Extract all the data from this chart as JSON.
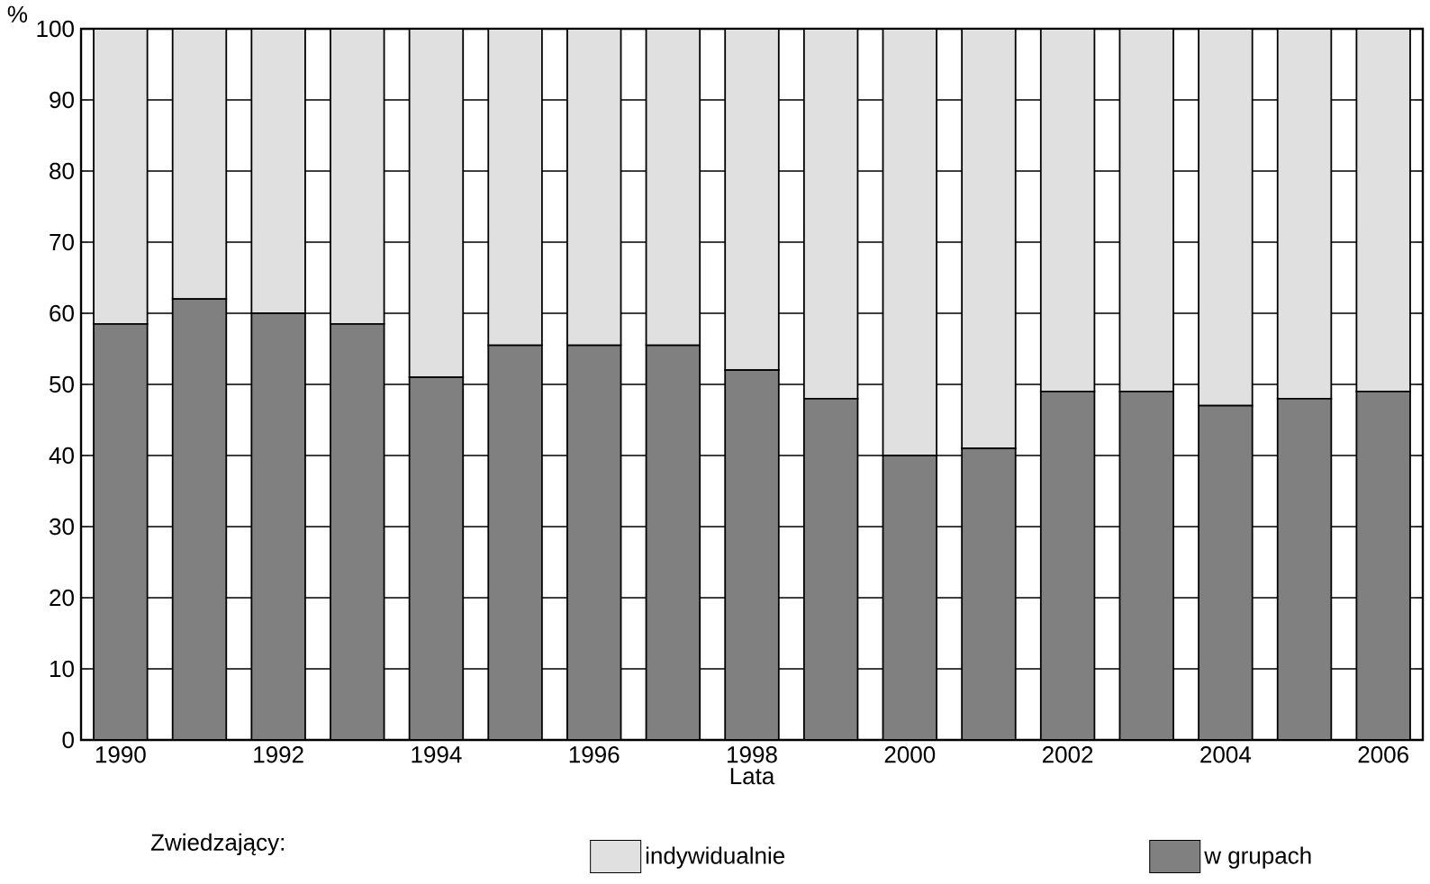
{
  "chart_data": {
    "type": "bar",
    "stacked": true,
    "ylabel": "%",
    "xlabel": "Lata",
    "legend_title": "Zwiedzający:",
    "categories": [
      "1990",
      null,
      "1992",
      null,
      "1994",
      null,
      "1996",
      null,
      "1998",
      null,
      "2000",
      null,
      "2002",
      null,
      "2004",
      null,
      "2006"
    ],
    "series": [
      {
        "name": "w grupach",
        "color": "#808080",
        "values": [
          58.5,
          62,
          60,
          58.5,
          51,
          55.5,
          55.5,
          55.5,
          52,
          48,
          40,
          41,
          49,
          49,
          47,
          48,
          49
        ]
      },
      {
        "name": "indywidualnie",
        "color": "#e0e0e0",
        "values": [
          41.5,
          38,
          40,
          41.5,
          49,
          44.5,
          44.5,
          44.5,
          48,
          52,
          60,
          59,
          51,
          51,
          53,
          52,
          51
        ]
      }
    ],
    "ylim": [
      0,
      100
    ],
    "yticks": [
      0,
      10,
      20,
      30,
      40,
      50,
      60,
      70,
      80,
      90,
      100
    ],
    "grid": "y",
    "legend": "bottom"
  }
}
